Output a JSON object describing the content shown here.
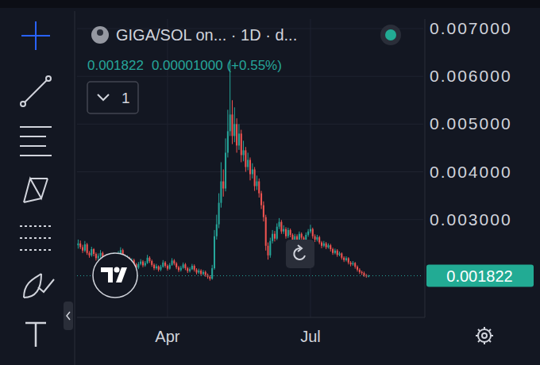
{
  "chart_data": {
    "type": "candlestick",
    "title": "GIGA/SOL on... · 1D · d...",
    "header": {
      "last": "0.001822",
      "change": "0.00001000 (+0.55%)",
      "button": "1"
    },
    "categories": [
      null,
      null,
      null,
      null,
      null,
      null,
      null,
      null,
      null,
      null,
      null,
      null,
      null,
      null,
      null,
      null,
      null,
      null,
      null,
      null,
      null,
      null,
      null,
      null,
      null,
      null,
      null,
      null,
      null,
      null,
      null,
      null,
      null,
      null,
      null,
      null,
      null,
      null,
      null,
      null,
      "Apr",
      null,
      null,
      null,
      null,
      null,
      null,
      null,
      null,
      null,
      null,
      null,
      null,
      null,
      null,
      null,
      null,
      null,
      null,
      null,
      null,
      null,
      null,
      null,
      null,
      null,
      null,
      null,
      null,
      null,
      null,
      null,
      null,
      null,
      null,
      null,
      null,
      null,
      null,
      null,
      null,
      null,
      null,
      null,
      null,
      null,
      null,
      null,
      null,
      null,
      null,
      null,
      null,
      null,
      null,
      null,
      null,
      null,
      null,
      null,
      null,
      null,
      null,
      null,
      "Jul",
      null,
      null,
      null,
      null,
      null,
      null,
      null,
      null,
      null,
      null,
      null,
      null,
      null,
      null,
      null,
      null,
      null,
      null,
      null,
      null,
      null,
      null,
      null,
      null,
      null,
      null
    ],
    "open": [
      0.00246,
      0.0025,
      0.00242,
      0.00235,
      0.00248,
      0.0023,
      0.00225,
      0.00238,
      0.00228,
      0.00219,
      0.00224,
      0.0023,
      0.00221,
      0.00215,
      0.00223,
      0.0021,
      0.00218,
      0.00226,
      0.00217,
      0.00229,
      0.00236,
      0.00224,
      0.00216,
      0.0022,
      0.00208,
      0.00215,
      0.00206,
      0.00199,
      0.00207,
      0.00212,
      0.00204,
      0.00209,
      0.0022,
      0.00213,
      0.00205,
      0.00198,
      0.00202,
      0.00195,
      0.00201,
      0.0021,
      0.00203,
      0.00197,
      0.00205,
      0.00214,
      0.00208,
      0.002,
      0.00194,
      0.00199,
      0.00206,
      0.00198,
      0.00192,
      0.00196,
      0.00203,
      0.00195,
      0.00189,
      0.00193,
      0.00186,
      0.0019,
      0.00184,
      0.0018,
      0.00176,
      0.00198,
      0.00265,
      0.0029,
      0.00335,
      0.0038,
      0.00365,
      0.0044,
      0.00485,
      0.0052,
      0.00475,
      0.005,
      0.00455,
      0.0048,
      0.00435,
      0.00445,
      0.0041,
      0.00425,
      0.00395,
      0.00405,
      0.0037,
      0.0038,
      0.00355,
      0.0033,
      0.00305,
      0.00245,
      0.00225,
      0.00255,
      0.0027,
      0.0026,
      0.00285,
      0.00295,
      0.00275,
      0.0028,
      0.00265,
      0.00278,
      0.00268,
      0.00255,
      0.00265,
      0.00258,
      0.0027,
      0.00262,
      0.0025,
      0.00268,
      0.00275,
      0.0028,
      0.00265,
      0.00258,
      0.00263,
      0.00252,
      0.00245,
      0.0025,
      0.00242,
      0.00246,
      0.00238,
      0.0023,
      0.00235,
      0.00226,
      0.00229,
      0.0022,
      0.00215,
      0.00219,
      0.0021,
      0.00206,
      0.00209,
      0.00201,
      0.00195,
      0.0019,
      0.00188,
      0.00183,
      0.001812
    ],
    "high": [
      0.00258,
      0.00256,
      0.00247,
      0.00255,
      0.00251,
      0.00234,
      0.00243,
      0.0024,
      0.00231,
      0.00229,
      0.00236,
      0.00233,
      0.00225,
      0.00228,
      0.00226,
      0.00222,
      0.00231,
      0.00229,
      0.00234,
      0.00242,
      0.00239,
      0.00227,
      0.00225,
      0.00222,
      0.00219,
      0.00218,
      0.00209,
      0.00211,
      0.00217,
      0.00215,
      0.00213,
      0.00226,
      0.00223,
      0.00216,
      0.00208,
      0.00207,
      0.00204,
      0.00205,
      0.00215,
      0.00213,
      0.00206,
      0.00209,
      0.00219,
      0.00217,
      0.00211,
      0.00203,
      0.00203,
      0.0021,
      0.00209,
      0.00201,
      0.002,
      0.00207,
      0.00206,
      0.00198,
      0.00197,
      0.00196,
      0.00194,
      0.00193,
      0.00187,
      0.00183,
      0.00205,
      0.00278,
      0.0031,
      0.00355,
      0.0042,
      0.00405,
      0.0047,
      0.0053,
      0.00635,
      0.0055,
      0.00535,
      0.00512,
      0.005,
      0.00488,
      0.00465,
      0.00452,
      0.0044,
      0.0043,
      0.00418,
      0.0041,
      0.00392,
      0.00386,
      0.0036,
      0.00338,
      0.0031,
      0.00252,
      0.00262,
      0.00278,
      0.00276,
      0.00292,
      0.00303,
      0.00299,
      0.00288,
      0.00284,
      0.00283,
      0.00281,
      0.00271,
      0.0027,
      0.00269,
      0.00275,
      0.00273,
      0.00265,
      0.00273,
      0.0028,
      0.00289,
      0.00283,
      0.00269,
      0.00268,
      0.00266,
      0.00255,
      0.00255,
      0.00253,
      0.0025,
      0.00249,
      0.00241,
      0.00239,
      0.00238,
      0.00233,
      0.00231,
      0.00223,
      0.00223,
      0.00221,
      0.00213,
      0.00213,
      0.00211,
      0.00204,
      0.00198,
      0.00193,
      0.00191,
      0.00186,
      0.00184
    ],
    "low": [
      0.00239,
      0.00238,
      0.0023,
      0.00232,
      0.00226,
      0.0022,
      0.00222,
      0.00223,
      0.00214,
      0.00215,
      0.0022,
      0.00217,
      0.00211,
      0.00212,
      0.00206,
      0.00207,
      0.00215,
      0.00213,
      0.00215,
      0.00226,
      0.0022,
      0.00212,
      0.00213,
      0.00204,
      0.00205,
      0.00202,
      0.00195,
      0.00196,
      0.00204,
      0.002,
      0.00201,
      0.00207,
      0.00209,
      0.00201,
      0.00194,
      0.00195,
      0.00191,
      0.00192,
      0.00199,
      0.00199,
      0.00193,
      0.00195,
      0.00203,
      0.00204,
      0.00196,
      0.0019,
      0.00191,
      0.00197,
      0.00194,
      0.00188,
      0.00189,
      0.00194,
      0.00191,
      0.00185,
      0.00186,
      0.00182,
      0.00183,
      0.0018,
      0.00176,
      0.00172,
      0.00174,
      0.00195,
      0.00258,
      0.00282,
      0.00325,
      0.00348,
      0.00359,
      0.0043,
      0.00475,
      0.00458,
      0.00462,
      0.0044,
      0.00446,
      0.0042,
      0.00422,
      0.004,
      0.00403,
      0.00382,
      0.00386,
      0.0036,
      0.00362,
      0.00346,
      0.00322,
      0.00296,
      0.00235,
      0.00216,
      0.0022,
      0.0025,
      0.00254,
      0.00257,
      0.0028,
      0.0027,
      0.0027,
      0.0026,
      0.00261,
      0.00263,
      0.0025,
      0.00252,
      0.00253,
      0.00255,
      0.00258,
      0.00246,
      0.00248,
      0.00264,
      0.00271,
      0.0026,
      0.00253,
      0.00254,
      0.00248,
      0.0024,
      0.00242,
      0.00238,
      0.00239,
      0.00233,
      0.00226,
      0.00227,
      0.00222,
      0.00223,
      0.00216,
      0.00211,
      0.00212,
      0.00206,
      0.00202,
      0.00203,
      0.00197,
      0.00191,
      0.00186,
      0.00184,
      0.0018,
      0.00178,
      0.00179
    ],
    "close": [
      0.0025,
      0.00242,
      0.00235,
      0.00248,
      0.0023,
      0.00225,
      0.00238,
      0.00228,
      0.00219,
      0.00224,
      0.0023,
      0.00221,
      0.00215,
      0.00223,
      0.0021,
      0.00218,
      0.00226,
      0.00217,
      0.00229,
      0.00236,
      0.00224,
      0.00216,
      0.0022,
      0.00208,
      0.00215,
      0.00206,
      0.00199,
      0.00207,
      0.00212,
      0.00204,
      0.00209,
      0.0022,
      0.00213,
      0.00205,
      0.00198,
      0.00202,
      0.00195,
      0.00201,
      0.0021,
      0.00203,
      0.00197,
      0.00205,
      0.00214,
      0.00208,
      0.002,
      0.00194,
      0.00199,
      0.00206,
      0.00198,
      0.00192,
      0.00196,
      0.00203,
      0.00195,
      0.00189,
      0.00193,
      0.00186,
      0.0019,
      0.00184,
      0.0018,
      0.00176,
      0.00198,
      0.00265,
      0.0029,
      0.00335,
      0.0038,
      0.00365,
      0.0044,
      0.00485,
      0.0052,
      0.00475,
      0.005,
      0.00455,
      0.0048,
      0.00435,
      0.00445,
      0.0041,
      0.00425,
      0.00395,
      0.00405,
      0.0037,
      0.0038,
      0.00355,
      0.0033,
      0.00305,
      0.00245,
      0.00225,
      0.00255,
      0.0027,
      0.0026,
      0.00285,
      0.00295,
      0.00275,
      0.0028,
      0.00265,
      0.00278,
      0.00268,
      0.00255,
      0.00265,
      0.00258,
      0.0027,
      0.00262,
      0.0025,
      0.00268,
      0.00275,
      0.0028,
      0.00265,
      0.00258,
      0.00263,
      0.00252,
      0.00245,
      0.0025,
      0.00242,
      0.00246,
      0.00238,
      0.0023,
      0.00235,
      0.00226,
      0.00229,
      0.0022,
      0.00215,
      0.00219,
      0.0021,
      0.00206,
      0.00209,
      0.00201,
      0.00195,
      0.0019,
      0.00188,
      0.00183,
      0.001812,
      0.001822
    ],
    "price_line": {
      "value": 0.001822,
      "label": "0.001822"
    },
    "ylim": [
      0.00095,
      0.0072
    ],
    "yticks": [
      {
        "value": 0.003,
        "label": "0.003000"
      },
      {
        "value": 0.004,
        "label": "0.004000"
      },
      {
        "value": 0.005,
        "label": "0.005000"
      },
      {
        "value": 0.006,
        "label": "0.006000"
      },
      {
        "value": 0.007,
        "label": "0.007000"
      }
    ],
    "grid": true
  }
}
